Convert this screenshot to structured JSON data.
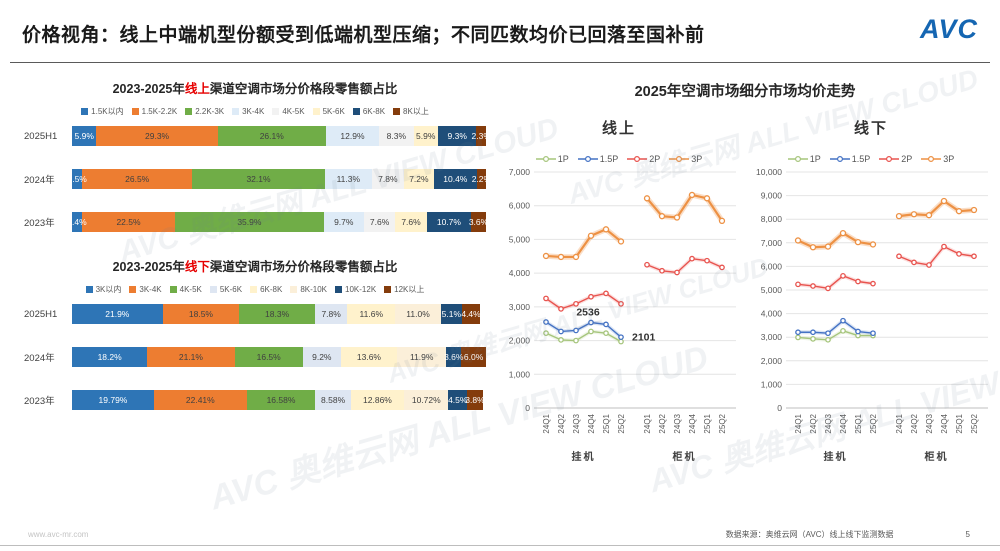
{
  "header": {
    "title": "价格视角：线上中端机型份额受到低端机型压缩；不同匹数均价已回落至国补前",
    "logo_text": "AVC"
  },
  "watermark": "AVC 奥维云网 ALL VIEW CLOUD",
  "footer": {
    "website": "www.avc-mr.com",
    "source": "数据来源：奥维云网（AVC）线上线下监测数据",
    "page": "5"
  },
  "chart_data": [
    {
      "type": "bar",
      "stacked": true,
      "orientation": "horizontal",
      "title_prefix": "2023-2025年",
      "title_highlight": "线上",
      "title_suffix": "渠道空调市场分价格段零售额占比",
      "unit": "percent",
      "legend": [
        {
          "label": "1.5K以内",
          "color": "#2E75B6"
        },
        {
          "label": "1.5K-2.2K",
          "color": "#ED7D31"
        },
        {
          "label": "2.2K-3K",
          "color": "#70AD47"
        },
        {
          "label": "3K-4K",
          "color": "#DEEBF7"
        },
        {
          "label": "4K-5K",
          "color": "#F2F2F2"
        },
        {
          "label": "5K-6K",
          "color": "#FFF2CC"
        },
        {
          "label": "6K-8K",
          "color": "#1F4E79"
        },
        {
          "label": "8K以上",
          "color": "#843C0C"
        }
      ],
      "rows": [
        {
          "label": "2025H1",
          "values": [
            5.9,
            29.3,
            26.1,
            12.9,
            8.3,
            5.9,
            9.3,
            2.3
          ],
          "labels": [
            "5.9%",
            "29.3%",
            "26.1%",
            "12.9%",
            "8.3%",
            "5.9%",
            "9.3%",
            "2.3%"
          ]
        },
        {
          "label": "2024年",
          "values": [
            2.5,
            26.5,
            32.1,
            11.3,
            7.8,
            7.2,
            10.4,
            2.2
          ],
          "labels": [
            "2.5%",
            "26.5%",
            "32.1%",
            "11.3%",
            "7.8%",
            "7.2%",
            "10.4%",
            "2.2%"
          ]
        },
        {
          "label": "2023年",
          "values": [
            2.4,
            22.5,
            35.9,
            9.7,
            7.6,
            7.6,
            10.7,
            3.6
          ],
          "labels": [
            "2.4%",
            "22.5%",
            "35.9%",
            "9.7%",
            "7.6%",
            "7.6%",
            "10.7%",
            "3.6%"
          ]
        }
      ]
    },
    {
      "type": "bar",
      "stacked": true,
      "orientation": "horizontal",
      "title_prefix": "2023-2025年",
      "title_highlight": "线下",
      "title_suffix": "渠道空调市场分价格段零售额占比",
      "unit": "percent",
      "legend": [
        {
          "label": "3K以内",
          "color": "#2E75B6"
        },
        {
          "label": "3K-4K",
          "color": "#ED7D31"
        },
        {
          "label": "4K-5K",
          "color": "#70AD47"
        },
        {
          "label": "5K-6K",
          "color": "#DEE6F2"
        },
        {
          "label": "6K-8K",
          "color": "#FFF2CC"
        },
        {
          "label": "8K-10K",
          "color": "#FBEFD9"
        },
        {
          "label": "10K-12K",
          "color": "#1F4E79"
        },
        {
          "label": "12K以上",
          "color": "#843C0C"
        }
      ],
      "rows": [
        {
          "label": "2025H1",
          "values": [
            21.9,
            18.5,
            18.3,
            7.8,
            11.6,
            11.0,
            5.1,
            4.4
          ],
          "labels": [
            "21.9%",
            "18.5%",
            "18.3%",
            "7.8%",
            "11.6%",
            "11.0%",
            "5.1%",
            "4.4%"
          ]
        },
        {
          "label": "2024年",
          "values": [
            18.2,
            21.1,
            16.5,
            9.2,
            13.6,
            11.9,
            3.6,
            6.0
          ],
          "labels": [
            "18.2%",
            "21.1%",
            "16.5%",
            "9.2%",
            "13.6%",
            "11.9%",
            "3.6%",
            "6.0%"
          ]
        },
        {
          "label": "2023年",
          "values": [
            19.79,
            22.41,
            16.58,
            8.58,
            12.86,
            10.72,
            4.5,
            3.8
          ],
          "labels": [
            "19.79%",
            "22.41%",
            "16.58%",
            "8.58%",
            "12.86%",
            "10.72%",
            "4.5%",
            "3.8%"
          ]
        }
      ]
    },
    {
      "type": "line",
      "title": "2025年空调市场细分市场均价走势",
      "x_labels": [
        "24Q1",
        "24Q2",
        "24Q3",
        "24Q4",
        "25Q1",
        "25Q2"
      ],
      "group_labels": [
        "挂机",
        "柜机"
      ],
      "series_colors": {
        "1P": "#A6C57C",
        "1.5P": "#4472C4",
        "2P": "#E8534E",
        "3P": "#ED9144"
      },
      "panels": [
        {
          "subtitle": "线上",
          "ymax": 7000,
          "ytick_step": 1000,
          "series": [
            {
              "name": "1P",
              "groups": [
                [
                  2220,
                  2020,
                  2000,
                  2270,
                  2220,
                  1970
                ],
                null
              ]
            },
            {
              "name": "1.5P",
              "groups": [
                [
                  2550,
                  2270,
                  2300,
                  2536,
                  2480,
                  2101
                ],
                null
              ]
            },
            {
              "name": "2P",
              "groups": [
                [
                  3250,
                  2940,
                  3090,
                  3300,
                  3400,
                  3090
                ],
                [
                  4250,
                  4070,
                  4020,
                  4430,
                  4370,
                  4170
                ]
              ]
            },
            {
              "name": "3P",
              "groups": [
                [
                  4510,
                  4480,
                  4480,
                  5110,
                  5300,
                  4940
                ],
                [
                  6220,
                  5690,
                  5650,
                  6320,
                  6220,
                  5550
                ]
              ]
            }
          ],
          "annotations": [
            {
              "text": "2536",
              "group": 0,
              "idx": 3,
              "value": 2536,
              "placement": "above"
            },
            {
              "text": "2101",
              "group": 0,
              "idx": 5,
              "value": 2101,
              "placement": "right"
            }
          ]
        },
        {
          "subtitle": "线下",
          "ymax": 10000,
          "ytick_step": 1000,
          "series": [
            {
              "name": "1P",
              "groups": [
                [
                  2990,
                  2930,
                  2890,
                  3270,
                  3070,
                  3070
                ],
                null
              ]
            },
            {
              "name": "1.5P",
              "groups": [
                [
                  3210,
                  3210,
                  3170,
                  3700,
                  3240,
                  3170
                ],
                null
              ]
            },
            {
              "name": "2P",
              "groups": [
                [
                  5240,
                  5170,
                  5070,
                  5600,
                  5360,
                  5270
                ],
                [
                  6430,
                  6170,
                  6060,
                  6840,
                  6530,
                  6430
                ]
              ]
            },
            {
              "name": "3P",
              "groups": [
                [
                  7100,
                  6810,
                  6840,
                  7410,
                  7030,
                  6930
                ],
                [
                  8130,
                  8210,
                  8170,
                  8770,
                  8340,
                  8390
                ]
              ]
            }
          ],
          "annotations": []
        }
      ]
    }
  ]
}
